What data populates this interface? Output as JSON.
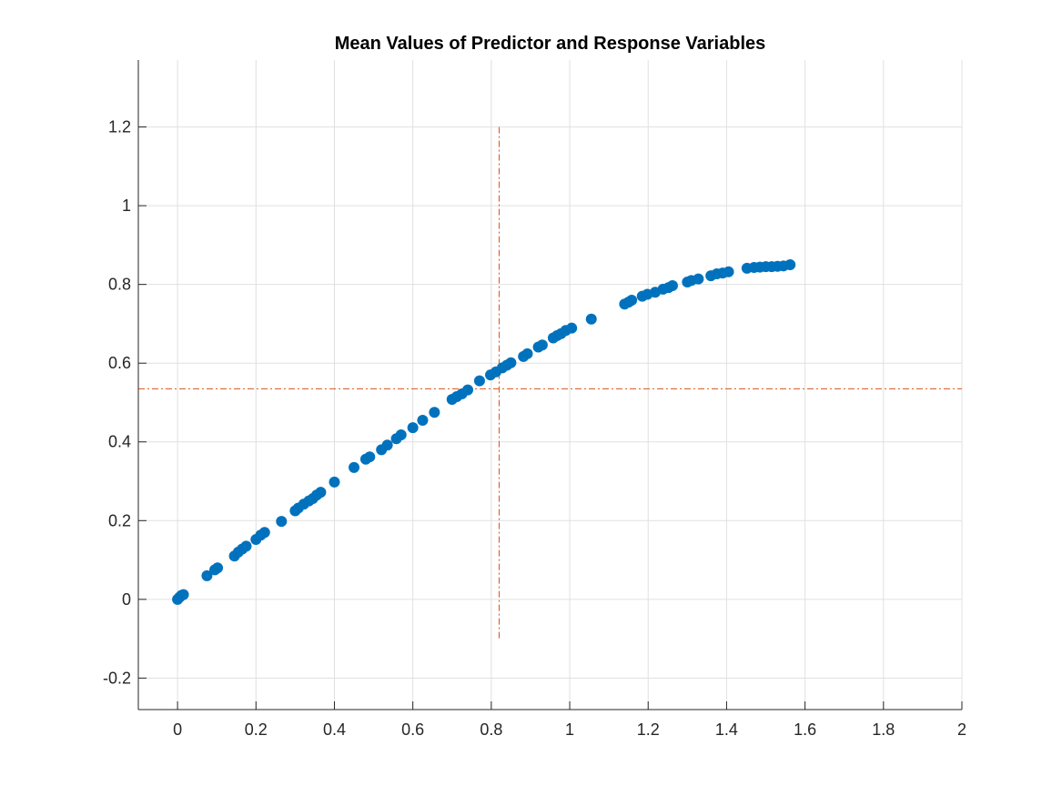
{
  "chart_data": {
    "type": "scatter",
    "title": "Mean Values of Predictor and Response Variables",
    "xlabel": "",
    "ylabel": "",
    "xlim": [
      -0.1,
      2
    ],
    "ylim": [
      -0.28,
      1.37
    ],
    "grid": true,
    "xticks": [
      0,
      0.2,
      0.4,
      0.6,
      0.8,
      1,
      1.2,
      1.4,
      1.6,
      1.8,
      2
    ],
    "xtick_labels": [
      "0",
      "0.2",
      "0.4",
      "0.6",
      "0.8",
      "1",
      "1.2",
      "1.4",
      "1.6",
      "1.8",
      "2"
    ],
    "yticks": [
      -0.2,
      0,
      0.2,
      0.4,
      0.6,
      0.8,
      1,
      1.2
    ],
    "ytick_labels": [
      "-0.2",
      "0",
      "0.2",
      "0.4",
      "0.6",
      "0.8",
      "1",
      "1.2"
    ],
    "colors": {
      "points": "#0072BD",
      "reference_lines": "#D95319",
      "grid": "#E0E0E0",
      "axes": "#262626"
    },
    "reference_lines": [
      {
        "orientation": "vertical",
        "x": 0.82,
        "y_range": [
          -0.1,
          1.2
        ],
        "style": "dash-dot"
      },
      {
        "orientation": "horizontal",
        "y": 0.535,
        "x_range": [
          -0.1,
          2
        ],
        "style": "dash-dot"
      }
    ],
    "series": [
      {
        "points": [
          [
            0.0,
            0.0
          ],
          [
            0.005,
            0.005
          ],
          [
            0.01,
            0.01
          ],
          [
            0.015,
            0.012
          ],
          [
            0.075,
            0.06
          ],
          [
            0.095,
            0.075
          ],
          [
            0.102,
            0.08
          ],
          [
            0.145,
            0.11
          ],
          [
            0.155,
            0.12
          ],
          [
            0.165,
            0.128
          ],
          [
            0.175,
            0.135
          ],
          [
            0.2,
            0.152
          ],
          [
            0.212,
            0.163
          ],
          [
            0.222,
            0.17
          ],
          [
            0.265,
            0.198
          ],
          [
            0.3,
            0.225
          ],
          [
            0.308,
            0.232
          ],
          [
            0.322,
            0.242
          ],
          [
            0.335,
            0.25
          ],
          [
            0.345,
            0.256
          ],
          [
            0.355,
            0.265
          ],
          [
            0.365,
            0.272
          ],
          [
            0.4,
            0.298
          ],
          [
            0.45,
            0.335
          ],
          [
            0.48,
            0.356
          ],
          [
            0.49,
            0.362
          ],
          [
            0.52,
            0.38
          ],
          [
            0.535,
            0.392
          ],
          [
            0.558,
            0.408
          ],
          [
            0.57,
            0.418
          ],
          [
            0.6,
            0.436
          ],
          [
            0.625,
            0.455
          ],
          [
            0.655,
            0.475
          ],
          [
            0.7,
            0.508
          ],
          [
            0.712,
            0.515
          ],
          [
            0.725,
            0.522
          ],
          [
            0.74,
            0.532
          ],
          [
            0.77,
            0.555
          ],
          [
            0.798,
            0.57
          ],
          [
            0.812,
            0.578
          ],
          [
            0.828,
            0.588
          ],
          [
            0.84,
            0.595
          ],
          [
            0.85,
            0.601
          ],
          [
            0.882,
            0.617
          ],
          [
            0.892,
            0.624
          ],
          [
            0.92,
            0.641
          ],
          [
            0.93,
            0.646
          ],
          [
            0.958,
            0.664
          ],
          [
            0.968,
            0.67
          ],
          [
            0.978,
            0.675
          ],
          [
            0.99,
            0.683
          ],
          [
            1.005,
            0.689
          ],
          [
            1.055,
            0.712
          ],
          [
            1.14,
            0.75
          ],
          [
            1.15,
            0.755
          ],
          [
            1.158,
            0.76
          ],
          [
            1.185,
            0.77
          ],
          [
            1.198,
            0.775
          ],
          [
            1.218,
            0.78
          ],
          [
            1.238,
            0.788
          ],
          [
            1.252,
            0.792
          ],
          [
            1.262,
            0.797
          ],
          [
            1.3,
            0.806
          ],
          [
            1.31,
            0.81
          ],
          [
            1.328,
            0.814
          ],
          [
            1.36,
            0.822
          ],
          [
            1.375,
            0.827
          ],
          [
            1.39,
            0.829
          ],
          [
            1.405,
            0.832
          ],
          [
            1.452,
            0.841
          ],
          [
            1.47,
            0.843
          ],
          [
            1.485,
            0.844
          ],
          [
            1.5,
            0.845
          ],
          [
            1.515,
            0.845
          ],
          [
            1.53,
            0.846
          ],
          [
            1.545,
            0.847
          ],
          [
            1.562,
            0.85
          ]
        ]
      }
    ]
  }
}
